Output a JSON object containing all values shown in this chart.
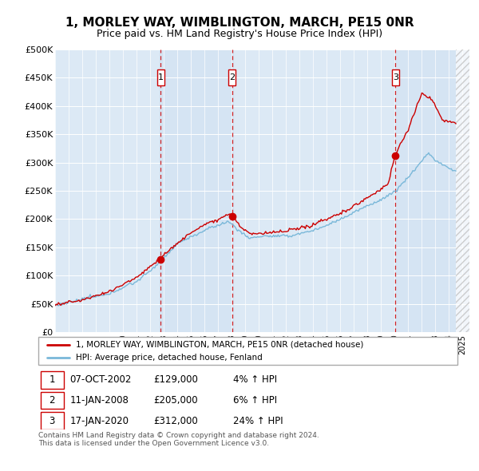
{
  "title": "1, MORLEY WAY, WIMBLINGTON, MARCH, PE15 0NR",
  "subtitle": "Price paid vs. HM Land Registry's House Price Index (HPI)",
  "ylabel_ticks": [
    "£0",
    "£50K",
    "£100K",
    "£150K",
    "£200K",
    "£250K",
    "£300K",
    "£350K",
    "£400K",
    "£450K",
    "£500K"
  ],
  "ytick_values": [
    0,
    50000,
    100000,
    150000,
    200000,
    250000,
    300000,
    350000,
    400000,
    450000,
    500000
  ],
  "ylim": [
    0,
    500000
  ],
  "xlim_start": 1995.0,
  "xlim_end": 2025.5,
  "sales": [
    {
      "date_num": 2002.77,
      "price": 129000,
      "label": "1"
    },
    {
      "date_num": 2008.03,
      "price": 205000,
      "label": "2"
    },
    {
      "date_num": 2020.05,
      "price": 312000,
      "label": "3"
    }
  ],
  "sale_dates_str": [
    "07-OCT-2002",
    "11-JAN-2008",
    "17-JAN-2020"
  ],
  "sale_prices_str": [
    "£129,000",
    "£205,000",
    "£312,000"
  ],
  "sale_pcts_str": [
    "4% ↑ HPI",
    "6% ↑ HPI",
    "24% ↑ HPI"
  ],
  "hpi_color": "#7ab8d9",
  "price_color": "#cc0000",
  "dashed_line_color": "#cc0000",
  "background_color": "#dce9f5",
  "grid_color": "#ffffff",
  "footer_text": "Contains HM Land Registry data © Crown copyright and database right 2024.\nThis data is licensed under the Open Government Licence v3.0.",
  "legend1_label": "1, MORLEY WAY, WIMBLINGTON, MARCH, PE15 0NR (detached house)",
  "legend2_label": "HPI: Average price, detached house, Fenland"
}
